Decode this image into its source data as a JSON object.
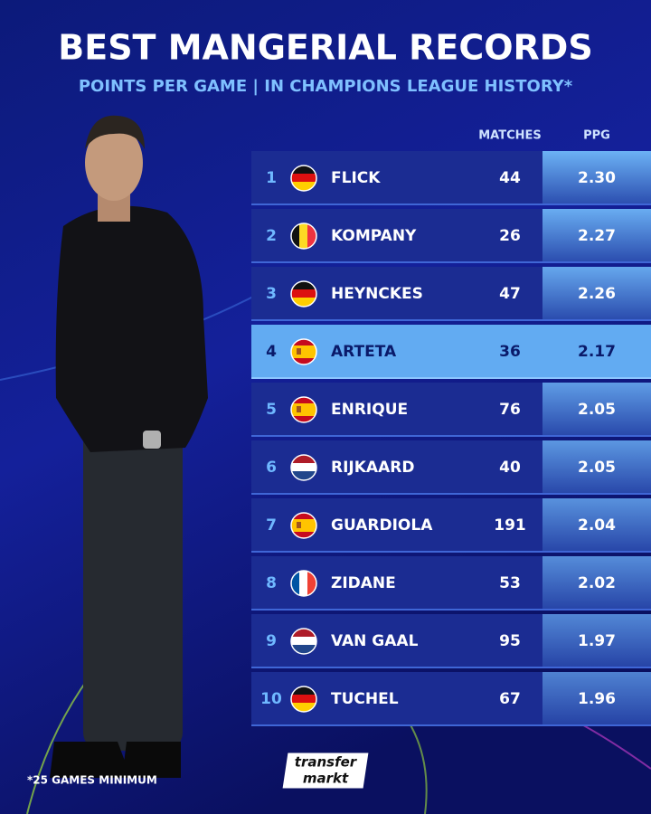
{
  "header": {
    "title": "BEST MANGERIAL RECORDS",
    "subtitle": "POINTS PER GAME | IN CHAMPIONS LEAGUE HISTORY*"
  },
  "table": {
    "columns": [
      "MATCHES",
      "PPG"
    ],
    "rows": [
      [
        "1",
        "FLICK",
        "44",
        "2.30"
      ],
      [
        "2",
        "KOMPANY",
        "26",
        "2.27"
      ],
      [
        "3",
        "HEYNCKES",
        "47",
        "2.26"
      ],
      [
        "4",
        "ARTETA",
        "36",
        "2.17"
      ],
      [
        "5",
        "ENRIQUE",
        "76",
        "2.05"
      ],
      [
        "6",
        "RIJKAARD",
        "40",
        "2.05"
      ],
      [
        "7",
        "GUARDIOLA",
        "191",
        "2.04"
      ],
      [
        "8",
        "ZIDANE",
        "53",
        "2.02"
      ],
      [
        "9",
        "VAN GAAL",
        "95",
        "1.97"
      ],
      [
        "10",
        "TUCHEL",
        "67",
        "1.96"
      ]
    ]
  },
  "footnote": "*25 GAMES MINIMUM",
  "logo": {
    "line1": "transfer",
    "line2": "markt"
  }
}
